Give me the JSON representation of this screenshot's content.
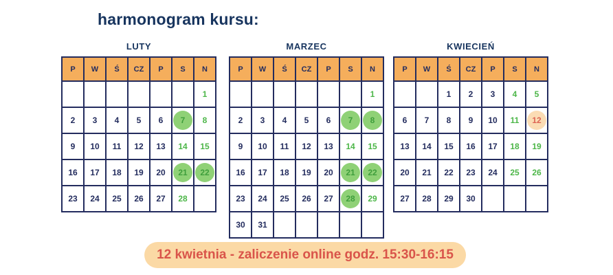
{
  "page": {
    "title": "harmonogram kursu:"
  },
  "colors": {
    "background": "#ffffff",
    "navy": "#232c5e",
    "title_navy": "#17345e",
    "header_orange": "#f5ae5c",
    "green": "#4cb648",
    "green_circle_bg": "#8fd176",
    "green_circle_text": "#3f9e3c",
    "exam_circle_bg": "#fbdcb4",
    "exam_text": "#dd6454",
    "banner_bg": "#fbd9a5",
    "banner_text": "#d9544a"
  },
  "weekday_headers": [
    "P",
    "W",
    "Ś",
    "CZ",
    "P",
    "S",
    "N"
  ],
  "legend_semantics": {
    "circle": "session-day",
    "green": "highlighted-weekend-day",
    "exam": "exam-day"
  },
  "calendars": [
    {
      "name": "LUTY",
      "rows": [
        [
          {
            "d": "",
            "m": ""
          },
          {
            "d": "",
            "m": ""
          },
          {
            "d": "",
            "m": ""
          },
          {
            "d": "",
            "m": ""
          },
          {
            "d": "",
            "m": ""
          },
          {
            "d": "",
            "m": ""
          },
          {
            "d": "1",
            "m": "green"
          }
        ],
        [
          {
            "d": "2",
            "m": ""
          },
          {
            "d": "3",
            "m": ""
          },
          {
            "d": "4",
            "m": ""
          },
          {
            "d": "5",
            "m": ""
          },
          {
            "d": "6",
            "m": ""
          },
          {
            "d": "7",
            "m": "circle"
          },
          {
            "d": "8",
            "m": "green"
          }
        ],
        [
          {
            "d": "9",
            "m": ""
          },
          {
            "d": "10",
            "m": ""
          },
          {
            "d": "11",
            "m": ""
          },
          {
            "d": "12",
            "m": ""
          },
          {
            "d": "13",
            "m": ""
          },
          {
            "d": "14",
            "m": "green"
          },
          {
            "d": "15",
            "m": "green"
          }
        ],
        [
          {
            "d": "16",
            "m": ""
          },
          {
            "d": "17",
            "m": ""
          },
          {
            "d": "18",
            "m": ""
          },
          {
            "d": "19",
            "m": ""
          },
          {
            "d": "20",
            "m": ""
          },
          {
            "d": "21",
            "m": "circle"
          },
          {
            "d": "22",
            "m": "circle"
          }
        ],
        [
          {
            "d": "23",
            "m": ""
          },
          {
            "d": "24",
            "m": ""
          },
          {
            "d": "25",
            "m": ""
          },
          {
            "d": "26",
            "m": ""
          },
          {
            "d": "27",
            "m": ""
          },
          {
            "d": "28",
            "m": "green"
          },
          {
            "d": "",
            "m": ""
          }
        ]
      ]
    },
    {
      "name": "MARZEC",
      "rows": [
        [
          {
            "d": "",
            "m": ""
          },
          {
            "d": "",
            "m": ""
          },
          {
            "d": "",
            "m": ""
          },
          {
            "d": "",
            "m": ""
          },
          {
            "d": "",
            "m": ""
          },
          {
            "d": "",
            "m": ""
          },
          {
            "d": "1",
            "m": "green"
          }
        ],
        [
          {
            "d": "2",
            "m": ""
          },
          {
            "d": "3",
            "m": ""
          },
          {
            "d": "4",
            "m": ""
          },
          {
            "d": "5",
            "m": ""
          },
          {
            "d": "6",
            "m": ""
          },
          {
            "d": "7",
            "m": "circle"
          },
          {
            "d": "8",
            "m": "circle"
          }
        ],
        [
          {
            "d": "9",
            "m": ""
          },
          {
            "d": "10",
            "m": ""
          },
          {
            "d": "11",
            "m": ""
          },
          {
            "d": "12",
            "m": ""
          },
          {
            "d": "13",
            "m": ""
          },
          {
            "d": "14",
            "m": "green"
          },
          {
            "d": "15",
            "m": "green"
          }
        ],
        [
          {
            "d": "16",
            "m": ""
          },
          {
            "d": "17",
            "m": ""
          },
          {
            "d": "18",
            "m": ""
          },
          {
            "d": "19",
            "m": ""
          },
          {
            "d": "20",
            "m": ""
          },
          {
            "d": "21",
            "m": "circle"
          },
          {
            "d": "22",
            "m": "circle"
          }
        ],
        [
          {
            "d": "23",
            "m": ""
          },
          {
            "d": "24",
            "m": ""
          },
          {
            "d": "25",
            "m": ""
          },
          {
            "d": "26",
            "m": ""
          },
          {
            "d": "27",
            "m": ""
          },
          {
            "d": "28",
            "m": "circle"
          },
          {
            "d": "29",
            "m": "green"
          }
        ],
        [
          {
            "d": "30",
            "m": ""
          },
          {
            "d": "31",
            "m": ""
          },
          {
            "d": "",
            "m": ""
          },
          {
            "d": "",
            "m": ""
          },
          {
            "d": "",
            "m": ""
          },
          {
            "d": "",
            "m": ""
          },
          {
            "d": "",
            "m": ""
          }
        ]
      ]
    },
    {
      "name": "KWIECIEŃ",
      "rows": [
        [
          {
            "d": "",
            "m": ""
          },
          {
            "d": "",
            "m": ""
          },
          {
            "d": "1",
            "m": ""
          },
          {
            "d": "2",
            "m": ""
          },
          {
            "d": "3",
            "m": ""
          },
          {
            "d": "4",
            "m": "green"
          },
          {
            "d": "5",
            "m": "green"
          }
        ],
        [
          {
            "d": "6",
            "m": ""
          },
          {
            "d": "7",
            "m": ""
          },
          {
            "d": "8",
            "m": ""
          },
          {
            "d": "9",
            "m": ""
          },
          {
            "d": "10",
            "m": ""
          },
          {
            "d": "11",
            "m": "green"
          },
          {
            "d": "12",
            "m": "exam"
          }
        ],
        [
          {
            "d": "13",
            "m": ""
          },
          {
            "d": "14",
            "m": ""
          },
          {
            "d": "15",
            "m": ""
          },
          {
            "d": "16",
            "m": ""
          },
          {
            "d": "17",
            "m": ""
          },
          {
            "d": "18",
            "m": "green"
          },
          {
            "d": "19",
            "m": "green"
          }
        ],
        [
          {
            "d": "20",
            "m": ""
          },
          {
            "d": "21",
            "m": ""
          },
          {
            "d": "22",
            "m": ""
          },
          {
            "d": "23",
            "m": ""
          },
          {
            "d": "24",
            "m": ""
          },
          {
            "d": "25",
            "m": "green"
          },
          {
            "d": "26",
            "m": "green"
          }
        ],
        [
          {
            "d": "27",
            "m": ""
          },
          {
            "d": "28",
            "m": ""
          },
          {
            "d": "29",
            "m": ""
          },
          {
            "d": "30",
            "m": ""
          },
          {
            "d": "",
            "m": ""
          },
          {
            "d": "",
            "m": ""
          },
          {
            "d": "",
            "m": ""
          }
        ]
      ]
    }
  ],
  "banner": {
    "text": "12 kwietnia - zaliczenie online godz. 15:30-16:15"
  }
}
